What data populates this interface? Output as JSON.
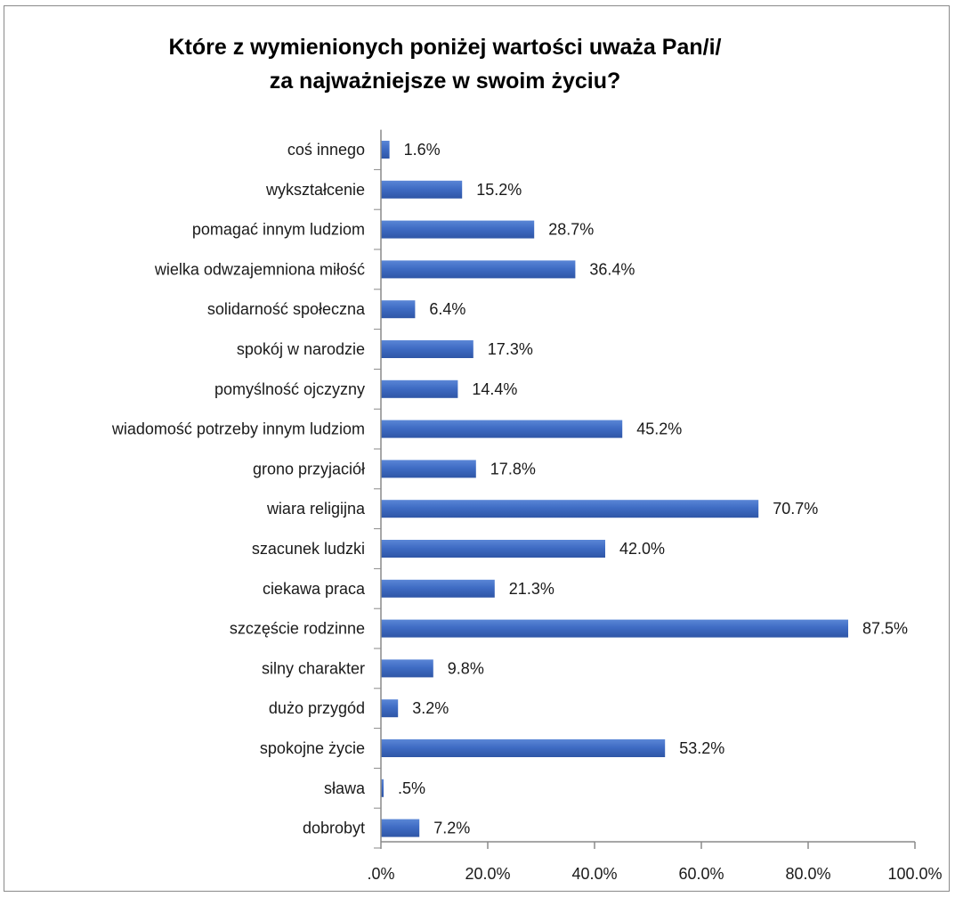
{
  "chart_data": {
    "type": "bar",
    "orientation": "horizontal",
    "title_lines": [
      "Które z wymienionych poniżej wartości uważa Pan/i/",
      "za najważniejsze w swoim życiu?"
    ],
    "categories": [
      "coś innego",
      "wykształcenie",
      "pomagać innym ludziom",
      "wielka odwzajemniona miłość",
      "solidarność społeczna",
      "spokój w narodzie",
      "pomyślność ojczyzny",
      "wiadomość potrzeby innym ludziom",
      "grono przyjaciół",
      "wiara religijna",
      "szacunek ludzki",
      "ciekawa praca",
      "szczęście rodzinne",
      "silny charakter",
      "dużo przygód",
      "spokojne życie",
      "sława",
      "dobrobyt"
    ],
    "values": [
      1.6,
      15.2,
      28.7,
      36.4,
      6.4,
      17.3,
      14.4,
      45.2,
      17.8,
      70.7,
      42.0,
      21.3,
      87.5,
      9.8,
      3.2,
      53.2,
      0.5,
      7.2
    ],
    "value_labels": [
      "1.6%",
      "15.2%",
      "28.7%",
      "36.4%",
      "6.4%",
      "17.3%",
      "14.4%",
      "45.2%",
      "17.8%",
      "70.7%",
      "42.0%",
      "21.3%",
      "87.5%",
      "9.8%",
      "3.2%",
      "53.2%",
      ".5%",
      "7.2%"
    ],
    "xlim": [
      0,
      100
    ],
    "x_ticks": [
      0,
      20,
      40,
      60,
      80,
      100
    ],
    "x_tick_labels": [
      ".0%",
      "20.0%",
      "40.0%",
      "60.0%",
      "80.0%",
      "100.0%"
    ],
    "bar_color": "#3f6cc4",
    "grid": false,
    "legend": "none"
  }
}
